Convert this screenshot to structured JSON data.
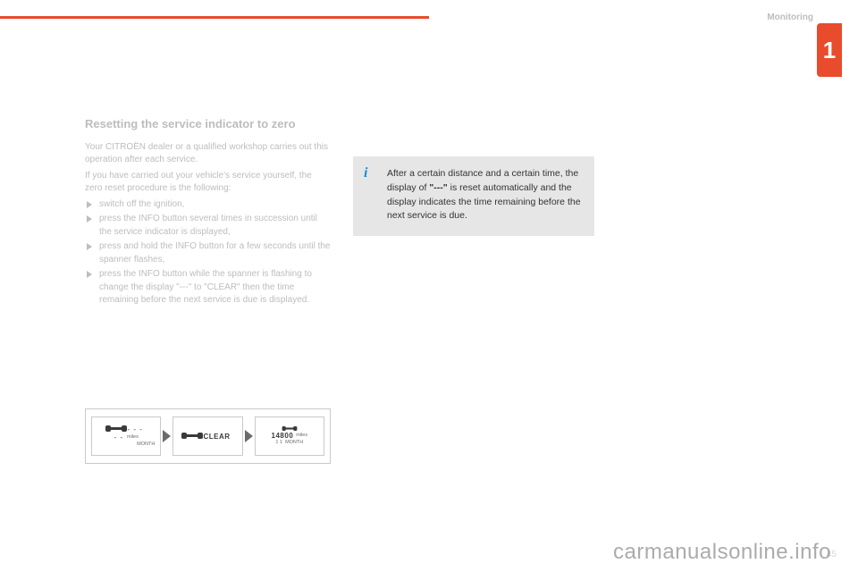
{
  "header": {
    "section_label": "Monitoring",
    "chapter_number": "1"
  },
  "main": {
    "heading": "Resetting the service indicator to zero",
    "intro1": "Your CITROËN dealer or a qualified workshop carries out this operation after each service.",
    "intro2": "If you have carried out your vehicle's service yourself, the zero reset procedure is the following:",
    "steps": [
      "switch off the ignition,",
      "press the INFO button several times in succession until the service indicator is displayed,",
      "press and hold the INFO button for a few seconds until the spanner flashes,",
      "press the INFO button while the spanner is flashing to change the display \"---\" to \"CLEAR\" then the time remaining before the next service is due is displayed."
    ]
  },
  "info": {
    "text_pre": "After a certain distance and a certain time, the display of ",
    "dashes": "\"---\"",
    "text_post": " is reset automatically and the display indicates the time remaining before the next service is due."
  },
  "diagram": {
    "panel1_line1": "- - -",
    "panel1_miles": "miles",
    "panel1_month": "MONTH",
    "panel2_label": "CLEAR",
    "panel3_value": "14800",
    "panel3_miles": "miles",
    "panel3_month_val": "1 1",
    "panel3_month": "MONTH"
  },
  "footer": {
    "page": "45",
    "watermark": "carmanualsonline.info"
  },
  "colors": {
    "accent": "#e84c2c",
    "faded_text": "#bdbdbd",
    "info_bg": "#e6e6e6",
    "info_icon": "#1a8fd4"
  }
}
